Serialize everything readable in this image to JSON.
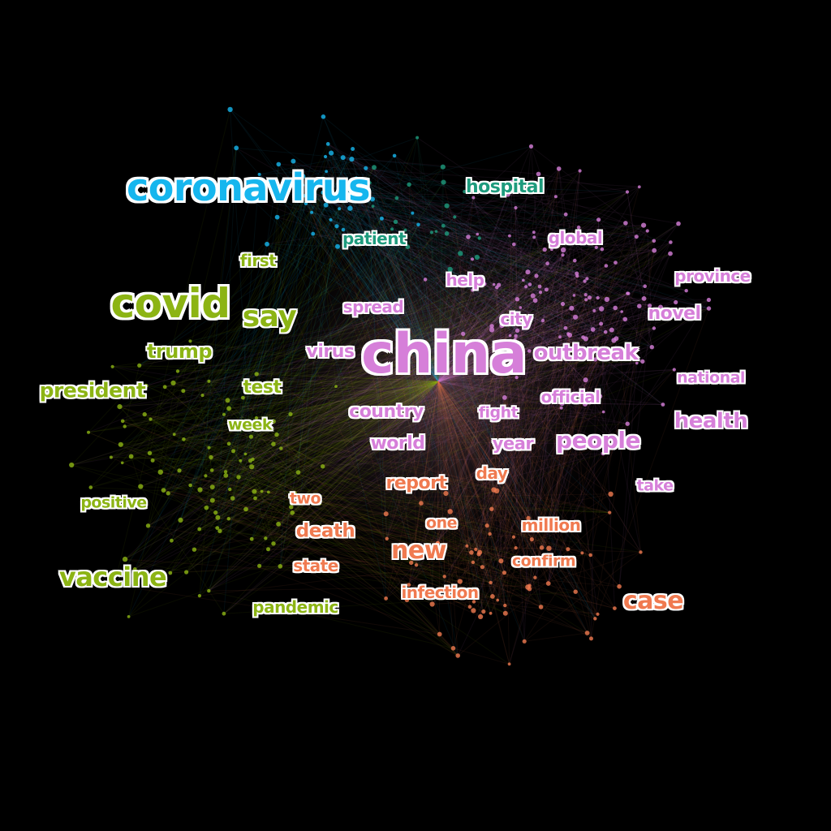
{
  "colors": {
    "background": "#000000",
    "blue": "#16b6ee",
    "teal": "#1e9b7d",
    "green": "#8cb414",
    "pink": "#d67fd9",
    "orange": "#f07a50"
  },
  "words": [
    {
      "id": "coronavirus",
      "text": "coronavirus",
      "color": "blue",
      "weight": 46
    },
    {
      "id": "hospital",
      "text": "hospital",
      "color": "teal",
      "weight": 22
    },
    {
      "id": "patient",
      "text": "patient",
      "color": "teal",
      "weight": 20
    },
    {
      "id": "global",
      "text": "global",
      "color": "pink",
      "weight": 20
    },
    {
      "id": "province",
      "text": "province",
      "color": "pink",
      "weight": 20
    },
    {
      "id": "first",
      "text": "first",
      "color": "green",
      "weight": 20
    },
    {
      "id": "help",
      "text": "help",
      "color": "pink",
      "weight": 20
    },
    {
      "id": "covid",
      "text": "covid",
      "color": "green",
      "weight": 50
    },
    {
      "id": "say",
      "text": "say",
      "color": "green",
      "weight": 36
    },
    {
      "id": "spread",
      "text": "spread",
      "color": "pink",
      "weight": 20
    },
    {
      "id": "novel",
      "text": "novel",
      "color": "pink",
      "weight": 22
    },
    {
      "id": "city",
      "text": "city",
      "color": "pink",
      "weight": 20
    },
    {
      "id": "china",
      "text": "china",
      "color": "pink",
      "weight": 68
    },
    {
      "id": "trump",
      "text": "trump",
      "color": "green",
      "weight": 24
    },
    {
      "id": "virus",
      "text": "virus",
      "color": "pink",
      "weight": 22
    },
    {
      "id": "outbreak",
      "text": "outbreak",
      "color": "pink",
      "weight": 26
    },
    {
      "id": "national",
      "text": "national",
      "color": "pink",
      "weight": 19
    },
    {
      "id": "president",
      "text": "president",
      "color": "green",
      "weight": 25
    },
    {
      "id": "test",
      "text": "test",
      "color": "green",
      "weight": 22
    },
    {
      "id": "official",
      "text": "official",
      "color": "pink",
      "weight": 20
    },
    {
      "id": "country",
      "text": "country",
      "color": "pink",
      "weight": 22
    },
    {
      "id": "fight",
      "text": "fight",
      "color": "pink",
      "weight": 19
    },
    {
      "id": "health",
      "text": "health",
      "color": "pink",
      "weight": 26
    },
    {
      "id": "week",
      "text": "week",
      "color": "green",
      "weight": 19
    },
    {
      "id": "world",
      "text": "world",
      "color": "pink",
      "weight": 22
    },
    {
      "id": "year",
      "text": "year",
      "color": "pink",
      "weight": 21
    },
    {
      "id": "people",
      "text": "people",
      "color": "pink",
      "weight": 28
    },
    {
      "id": "day",
      "text": "day",
      "color": "orange",
      "weight": 20
    },
    {
      "id": "report",
      "text": "report",
      "color": "orange",
      "weight": 22
    },
    {
      "id": "take",
      "text": "take",
      "color": "pink",
      "weight": 19
    },
    {
      "id": "two",
      "text": "two",
      "color": "orange",
      "weight": 19
    },
    {
      "id": "positive",
      "text": "positive",
      "color": "green",
      "weight": 19
    },
    {
      "id": "one",
      "text": "one",
      "color": "orange",
      "weight": 19
    },
    {
      "id": "million",
      "text": "million",
      "color": "orange",
      "weight": 20
    },
    {
      "id": "death",
      "text": "death",
      "color": "orange",
      "weight": 23
    },
    {
      "id": "new",
      "text": "new",
      "color": "orange",
      "weight": 30
    },
    {
      "id": "state",
      "text": "state",
      "color": "orange",
      "weight": 20
    },
    {
      "id": "confirm",
      "text": "confirm",
      "color": "orange",
      "weight": 19
    },
    {
      "id": "vaccine",
      "text": "vaccine",
      "color": "green",
      "weight": 32
    },
    {
      "id": "infection",
      "text": "infection",
      "color": "orange",
      "weight": 20
    },
    {
      "id": "case",
      "text": "case",
      "color": "orange",
      "weight": 30
    },
    {
      "id": "pandemic",
      "text": "pandemic",
      "color": "green",
      "weight": 20
    }
  ]
}
